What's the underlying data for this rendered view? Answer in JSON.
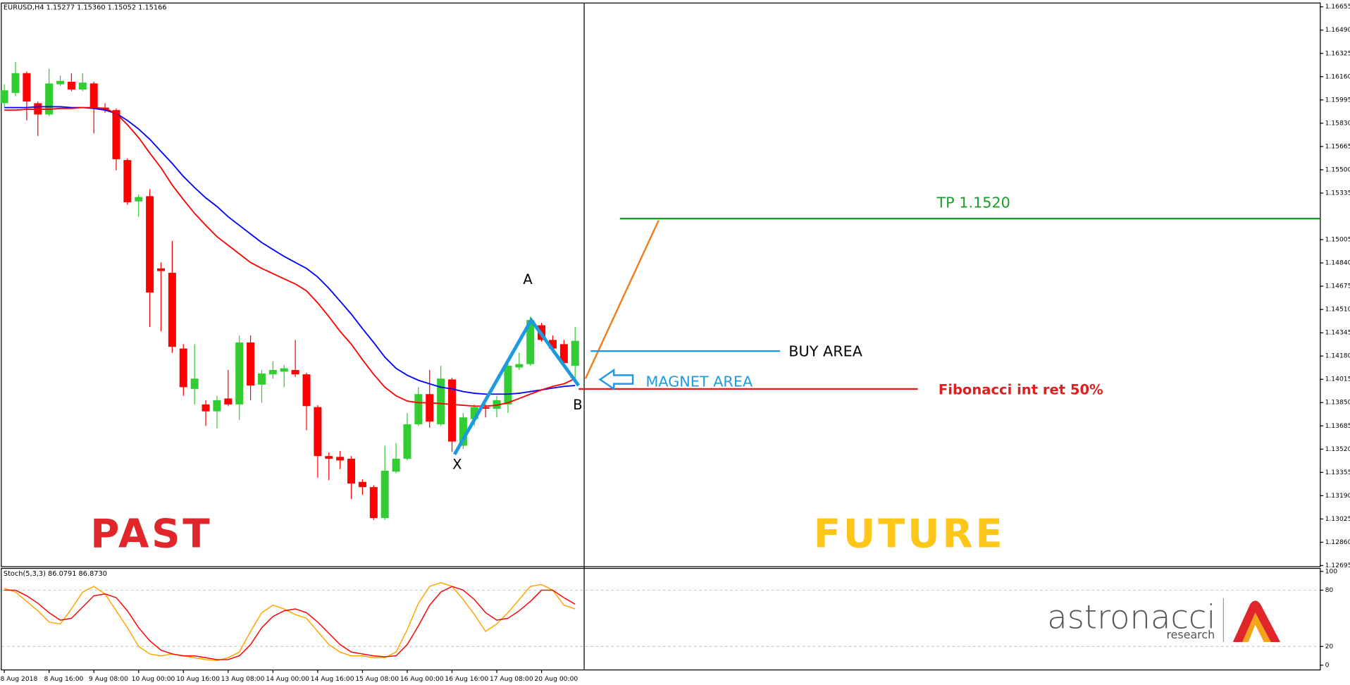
{
  "chart_data": [
    {
      "type": "candlestick",
      "title": "EURUSD,H4  1.15277 1.15360 1.15052 1.15166",
      "categories": [
        "8 Aug 2018",
        null,
        null,
        null,
        "8 Aug 16:00",
        null,
        null,
        null,
        "9 Aug 08:00",
        null,
        null,
        null,
        "10 Aug 00:00",
        null,
        null,
        null,
        "10 Aug 16:00",
        null,
        null,
        null,
        "13 Aug 08:00",
        null,
        null,
        null,
        "14 Aug 00:00",
        null,
        null,
        null,
        "14 Aug 16:00",
        null,
        null,
        null,
        "15 Aug 08:00",
        null,
        null,
        null,
        "16 Aug 00:00",
        null,
        null,
        null,
        "16 Aug 16:00",
        null,
        null,
        null,
        "17 Aug 08:00",
        null,
        null,
        null,
        "20 Aug 00:00",
        null,
        null,
        null
      ],
      "open": [
        1.15972,
        1.16045,
        1.16185,
        1.15972,
        1.15892,
        1.16106,
        1.16124,
        1.16069,
        1.16112,
        1.15941,
        1.15923,
        1.15569,
        1.15276,
        1.15313,
        1.14801,
        1.1477,
        1.14233,
        1.13947,
        1.13837,
        1.13788,
        1.13879,
        1.13837,
        1.14276,
        1.13977,
        1.1405,
        1.14069,
        1.14081,
        1.1405,
        1.13818,
        1.13471,
        1.13465,
        1.13452,
        1.13288,
        1.13251,
        1.13032,
        1.13361,
        1.13452,
        1.13696,
        1.1391,
        1.13696,
        1.14014,
        1.13544,
        1.13733,
        1.13818,
        1.13806,
        1.13837,
        1.14099,
        1.14123,
        1.14398,
        1.14294,
        1.14264,
        1.14111
      ],
      "high": [
        1.16106,
        1.16265,
        1.16197,
        1.15984,
        1.16216,
        1.16167,
        1.16185,
        1.16185,
        1.16124,
        1.15972,
        1.15935,
        1.15581,
        1.15325,
        1.15362,
        1.14843,
        1.14996,
        1.14264,
        1.14264,
        1.13867,
        1.13898,
        1.14081,
        1.14325,
        1.14325,
        1.14081,
        1.14142,
        1.14117,
        1.14294,
        1.14062,
        1.13831,
        1.13495,
        1.13507,
        1.13471,
        1.13306,
        1.13263,
        1.13544,
        1.13562,
        1.13776,
        1.13959,
        1.14081,
        1.14111,
        1.14026,
        1.13776,
        1.13837,
        1.13837,
        1.13898,
        1.14142,
        1.14203,
        1.14459,
        1.14416,
        1.14325,
        1.14294,
        1.14386
      ],
      "low": [
        1.15941,
        1.16021,
        1.1585,
        1.1574,
        1.1588,
        1.16094,
        1.16057,
        1.16057,
        1.15758,
        1.15905,
        1.15496,
        1.15252,
        1.15167,
        1.14386,
        1.14355,
        1.14203,
        1.13898,
        1.13837,
        1.13684,
        1.13666,
        1.13825,
        1.13727,
        1.13867,
        1.13849,
        1.1402,
        1.13959,
        1.14032,
        1.13654,
        1.13318,
        1.133,
        1.13379,
        1.13166,
        1.13196,
        1.13019,
        1.13019,
        1.13349,
        1.1344,
        1.13684,
        1.13672,
        1.13684,
        1.13501,
        1.1352,
        1.13684,
        1.13745,
        1.13745,
        1.13776,
        1.14081,
        1.14111,
        1.14282,
        1.14203,
        1.14111,
        1.1402
      ],
      "close": [
        1.16063,
        1.16185,
        1.15984,
        1.15892,
        1.16112,
        1.1613,
        1.16069,
        1.16118,
        1.15941,
        1.15923,
        1.15575,
        1.1527,
        1.15307,
        1.1463,
        1.14782,
        1.14245,
        1.13959,
        1.1402,
        1.13788,
        1.13867,
        1.13837,
        1.14276,
        1.13971,
        1.14056,
        1.14081,
        1.14093,
        1.1405,
        1.13825,
        1.13471,
        1.13452,
        1.1344,
        1.13276,
        1.13251,
        1.13032,
        1.13367,
        1.13452,
        1.13696,
        1.1391,
        1.13715,
        1.1402,
        1.13574,
        1.13745,
        1.13818,
        1.13806,
        1.13867,
        1.14111,
        1.14123,
        1.14435,
        1.14294,
        1.14233,
        1.1413,
        1.14288
      ],
      "up_color": "#32cd32",
      "down_color": "#ff0000",
      "series": [
        {
          "color": "#0000ff",
          "values": [
            1.15941,
            1.15941,
            1.15941,
            1.15947,
            1.15947,
            1.15947,
            1.15941,
            1.15941,
            1.15935,
            1.15923,
            1.15899,
            1.1585,
            1.15789,
            1.15716,
            1.1563,
            1.15545,
            1.15453,
            1.15374,
            1.15301,
            1.1524,
            1.15167,
            1.15106,
            1.15045,
            1.14984,
            1.14935,
            1.14886,
            1.14843,
            1.14801,
            1.1474,
            1.1466,
            1.14569,
            1.14477,
            1.14374,
            1.14276,
            1.14172,
            1.14093,
            1.14044,
            1.14008,
            1.13983,
            1.13959,
            1.13947,
            1.13928,
            1.13916,
            1.1391,
            1.1391,
            1.1391,
            1.13916,
            1.13928,
            1.1394,
            1.13953,
            1.13965,
            1.13971
          ]
        },
        {
          "color": "#ff0000",
          "values": [
            1.15923,
            1.15923,
            1.15929,
            1.15929,
            1.15929,
            1.15935,
            1.15935,
            1.15941,
            1.15941,
            1.15935,
            1.15899,
            1.15819,
            1.15728,
            1.15618,
            1.15514,
            1.15392,
            1.15289,
            1.15191,
            1.15106,
            1.15026,
            1.14965,
            1.14904,
            1.14843,
            1.14801,
            1.14764,
            1.14727,
            1.14691,
            1.14642,
            1.14557,
            1.14459,
            1.14355,
            1.14264,
            1.14154,
            1.1405,
            1.13959,
            1.13898,
            1.13861,
            1.13849,
            1.13849,
            1.13843,
            1.13837,
            1.13831,
            1.13825,
            1.13825,
            1.13831,
            1.13849,
            1.13879,
            1.1391,
            1.1394,
            1.13965,
            1.13983,
            1.1402
          ]
        }
      ],
      "ylim": [
        1.1269,
        1.16679
      ],
      "yticks": [
        1.16655,
        {
          "value": 1.1649,
          "label": "1.16490"
        },
        1.16325,
        {
          "value": 1.1616,
          "label": "1.16160"
        },
        1.15995,
        {
          "value": 1.1583,
          "label": "1.15830"
        },
        1.15665,
        {
          "value": 1.155,
          "label": "1.15500"
        },
        1.15335,
        1.15005,
        {
          "value": 1.1484,
          "label": "1.14840"
        },
        1.14675,
        {
          "value": 1.1451,
          "label": "1.14510"
        },
        1.14345,
        {
          "value": 1.1418,
          "label": "1.14180"
        },
        1.14015,
        {
          "value": 1.1385,
          "label": "1.13850"
        },
        1.13685,
        {
          "value": 1.1352,
          "label": "1.13520"
        },
        1.13355,
        {
          "value": 1.1319,
          "label": "1.13190"
        },
        1.13025,
        {
          "value": 1.1286,
          "label": "1.12860"
        },
        1.12695
      ]
    },
    {
      "type": "line",
      "title": "Stoch(5,3,3) 86.0791 86.8730",
      "series": [
        {
          "color": "#ffa500",
          "values": [
            82,
            78,
            68,
            58,
            46,
            44,
            60,
            78,
            84,
            76,
            58,
            40,
            20,
            12,
            10,
            12,
            10,
            8,
            6,
            5,
            8,
            14,
            36,
            56,
            64,
            60,
            54,
            50,
            36,
            22,
            14,
            10,
            10,
            8,
            8,
            14,
            38,
            66,
            84,
            88,
            84,
            70,
            54,
            36,
            44,
            56,
            70,
            84,
            86,
            80,
            64,
            60
          ]
        },
        {
          "color": "#ff0000",
          "values": [
            80,
            80,
            74,
            66,
            56,
            48,
            50,
            62,
            74,
            76,
            72,
            58,
            40,
            26,
            16,
            12,
            10,
            10,
            8,
            6,
            6,
            10,
            22,
            40,
            52,
            58,
            60,
            56,
            46,
            34,
            22,
            14,
            12,
            10,
            9,
            10,
            22,
            42,
            64,
            78,
            84,
            80,
            70,
            56,
            48,
            50,
            58,
            68,
            80,
            80,
            72,
            65
          ]
        }
      ],
      "ylim": [
        0,
        100
      ],
      "yticks": [
        0,
        20,
        80,
        100
      ]
    }
  ],
  "annotations": {
    "a": "A",
    "b": "B",
    "x": "X",
    "tp": "TP  1.1520",
    "buy": "BUY AREA",
    "magnet": "MAGNET AREA",
    "fib": "Fibonacci int ret 50%",
    "past": "PAST",
    "future": "FUTURE"
  },
  "logo": {
    "name": "astronacci",
    "tagline": "research"
  }
}
